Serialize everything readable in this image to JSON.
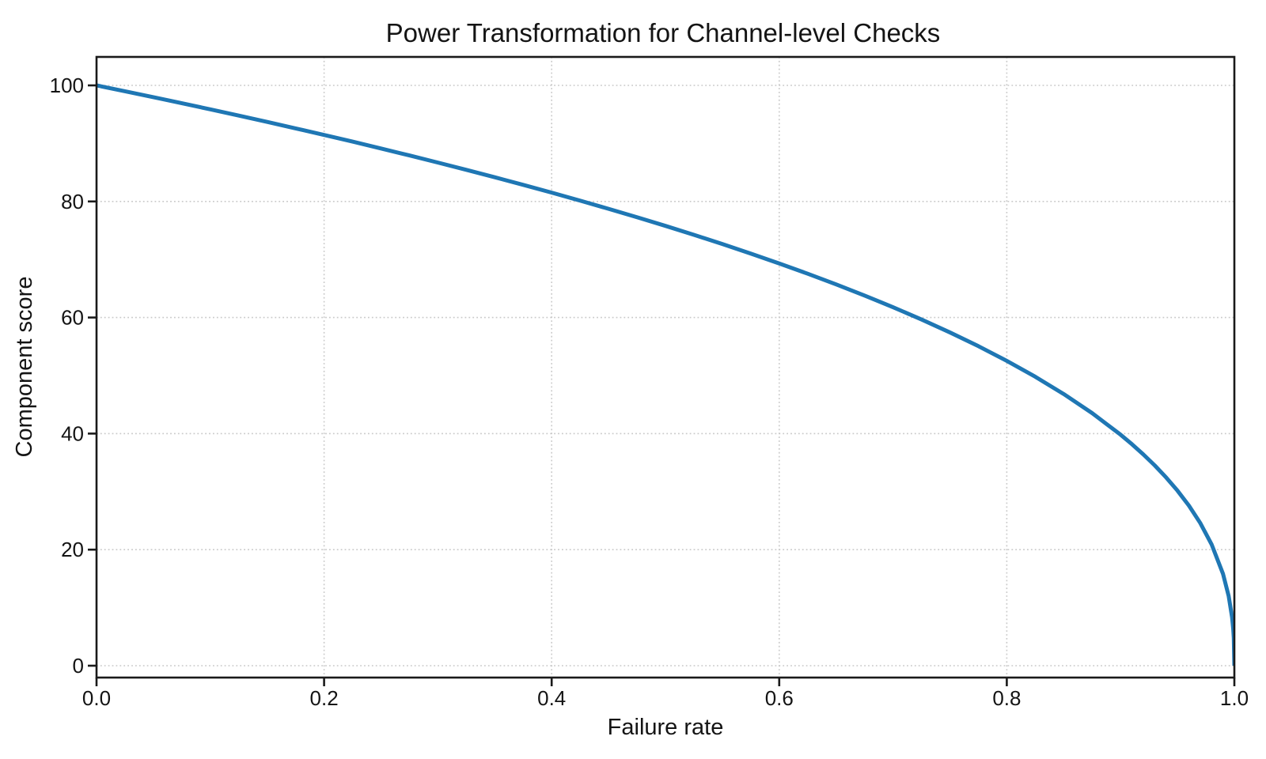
{
  "figure": {
    "background_color": "#ffffff",
    "text_color": "#141414"
  },
  "chart_data": {
    "type": "line",
    "title": "Power Transformation for Channel-level Checks",
    "xlabel": "Failure rate",
    "ylabel": "Component score",
    "xlim": [
      0.0,
      1.0
    ],
    "ylim": [
      0,
      100
    ],
    "xticks": {
      "values": [
        0.0,
        0.2,
        0.4,
        0.6,
        0.8,
        1.0
      ],
      "labels": [
        "0.0",
        "0.2",
        "0.4",
        "0.6",
        "0.8",
        "1.0"
      ]
    },
    "yticks": {
      "values": [
        0,
        20,
        40,
        60,
        80,
        100
      ],
      "labels": [
        "0",
        "20",
        "40",
        "60",
        "80",
        "100"
      ]
    },
    "grid": {
      "visible": true,
      "style": "dotted",
      "color": "#c9c9c9"
    },
    "spine_color": "#1a1a1a",
    "legend": null,
    "series": [
      {
        "name": "component_score_power_curve",
        "color": "#1f77b4",
        "line_width": 5,
        "points": [
          [
            0.0,
            100.0
          ],
          [
            0.025,
            98.99
          ],
          [
            0.05,
            97.97
          ],
          [
            0.075,
            96.93
          ],
          [
            0.1,
            95.87
          ],
          [
            0.125,
            94.8
          ],
          [
            0.15,
            93.71
          ],
          [
            0.175,
            92.59
          ],
          [
            0.2,
            91.46
          ],
          [
            0.225,
            90.31
          ],
          [
            0.25,
            89.13
          ],
          [
            0.275,
            87.93
          ],
          [
            0.3,
            86.7
          ],
          [
            0.325,
            85.45
          ],
          [
            0.35,
            84.17
          ],
          [
            0.375,
            82.86
          ],
          [
            0.4,
            81.52
          ],
          [
            0.425,
            80.14
          ],
          [
            0.45,
            78.73
          ],
          [
            0.475,
            77.28
          ],
          [
            0.5,
            75.79
          ],
          [
            0.525,
            74.25
          ],
          [
            0.55,
            72.66
          ],
          [
            0.575,
            71.01
          ],
          [
            0.6,
            69.31
          ],
          [
            0.625,
            67.55
          ],
          [
            0.65,
            65.71
          ],
          [
            0.675,
            63.79
          ],
          [
            0.7,
            61.78
          ],
          [
            0.725,
            59.67
          ],
          [
            0.75,
            57.43
          ],
          [
            0.775,
            55.07
          ],
          [
            0.8,
            52.53
          ],
          [
            0.825,
            49.8
          ],
          [
            0.85,
            46.82
          ],
          [
            0.875,
            43.53
          ],
          [
            0.9,
            39.81
          ],
          [
            0.91,
            38.17
          ],
          [
            0.92,
            36.41
          ],
          [
            0.93,
            34.52
          ],
          [
            0.94,
            32.45
          ],
          [
            0.95,
            30.17
          ],
          [
            0.96,
            27.6
          ],
          [
            0.97,
            24.6
          ],
          [
            0.98,
            20.91
          ],
          [
            0.99,
            15.85
          ],
          [
            0.995,
            12.01
          ],
          [
            0.998,
            8.33
          ],
          [
            0.999,
            6.31
          ],
          [
            0.9995,
            4.78
          ],
          [
            1.0,
            0.0
          ]
        ]
      }
    ]
  }
}
